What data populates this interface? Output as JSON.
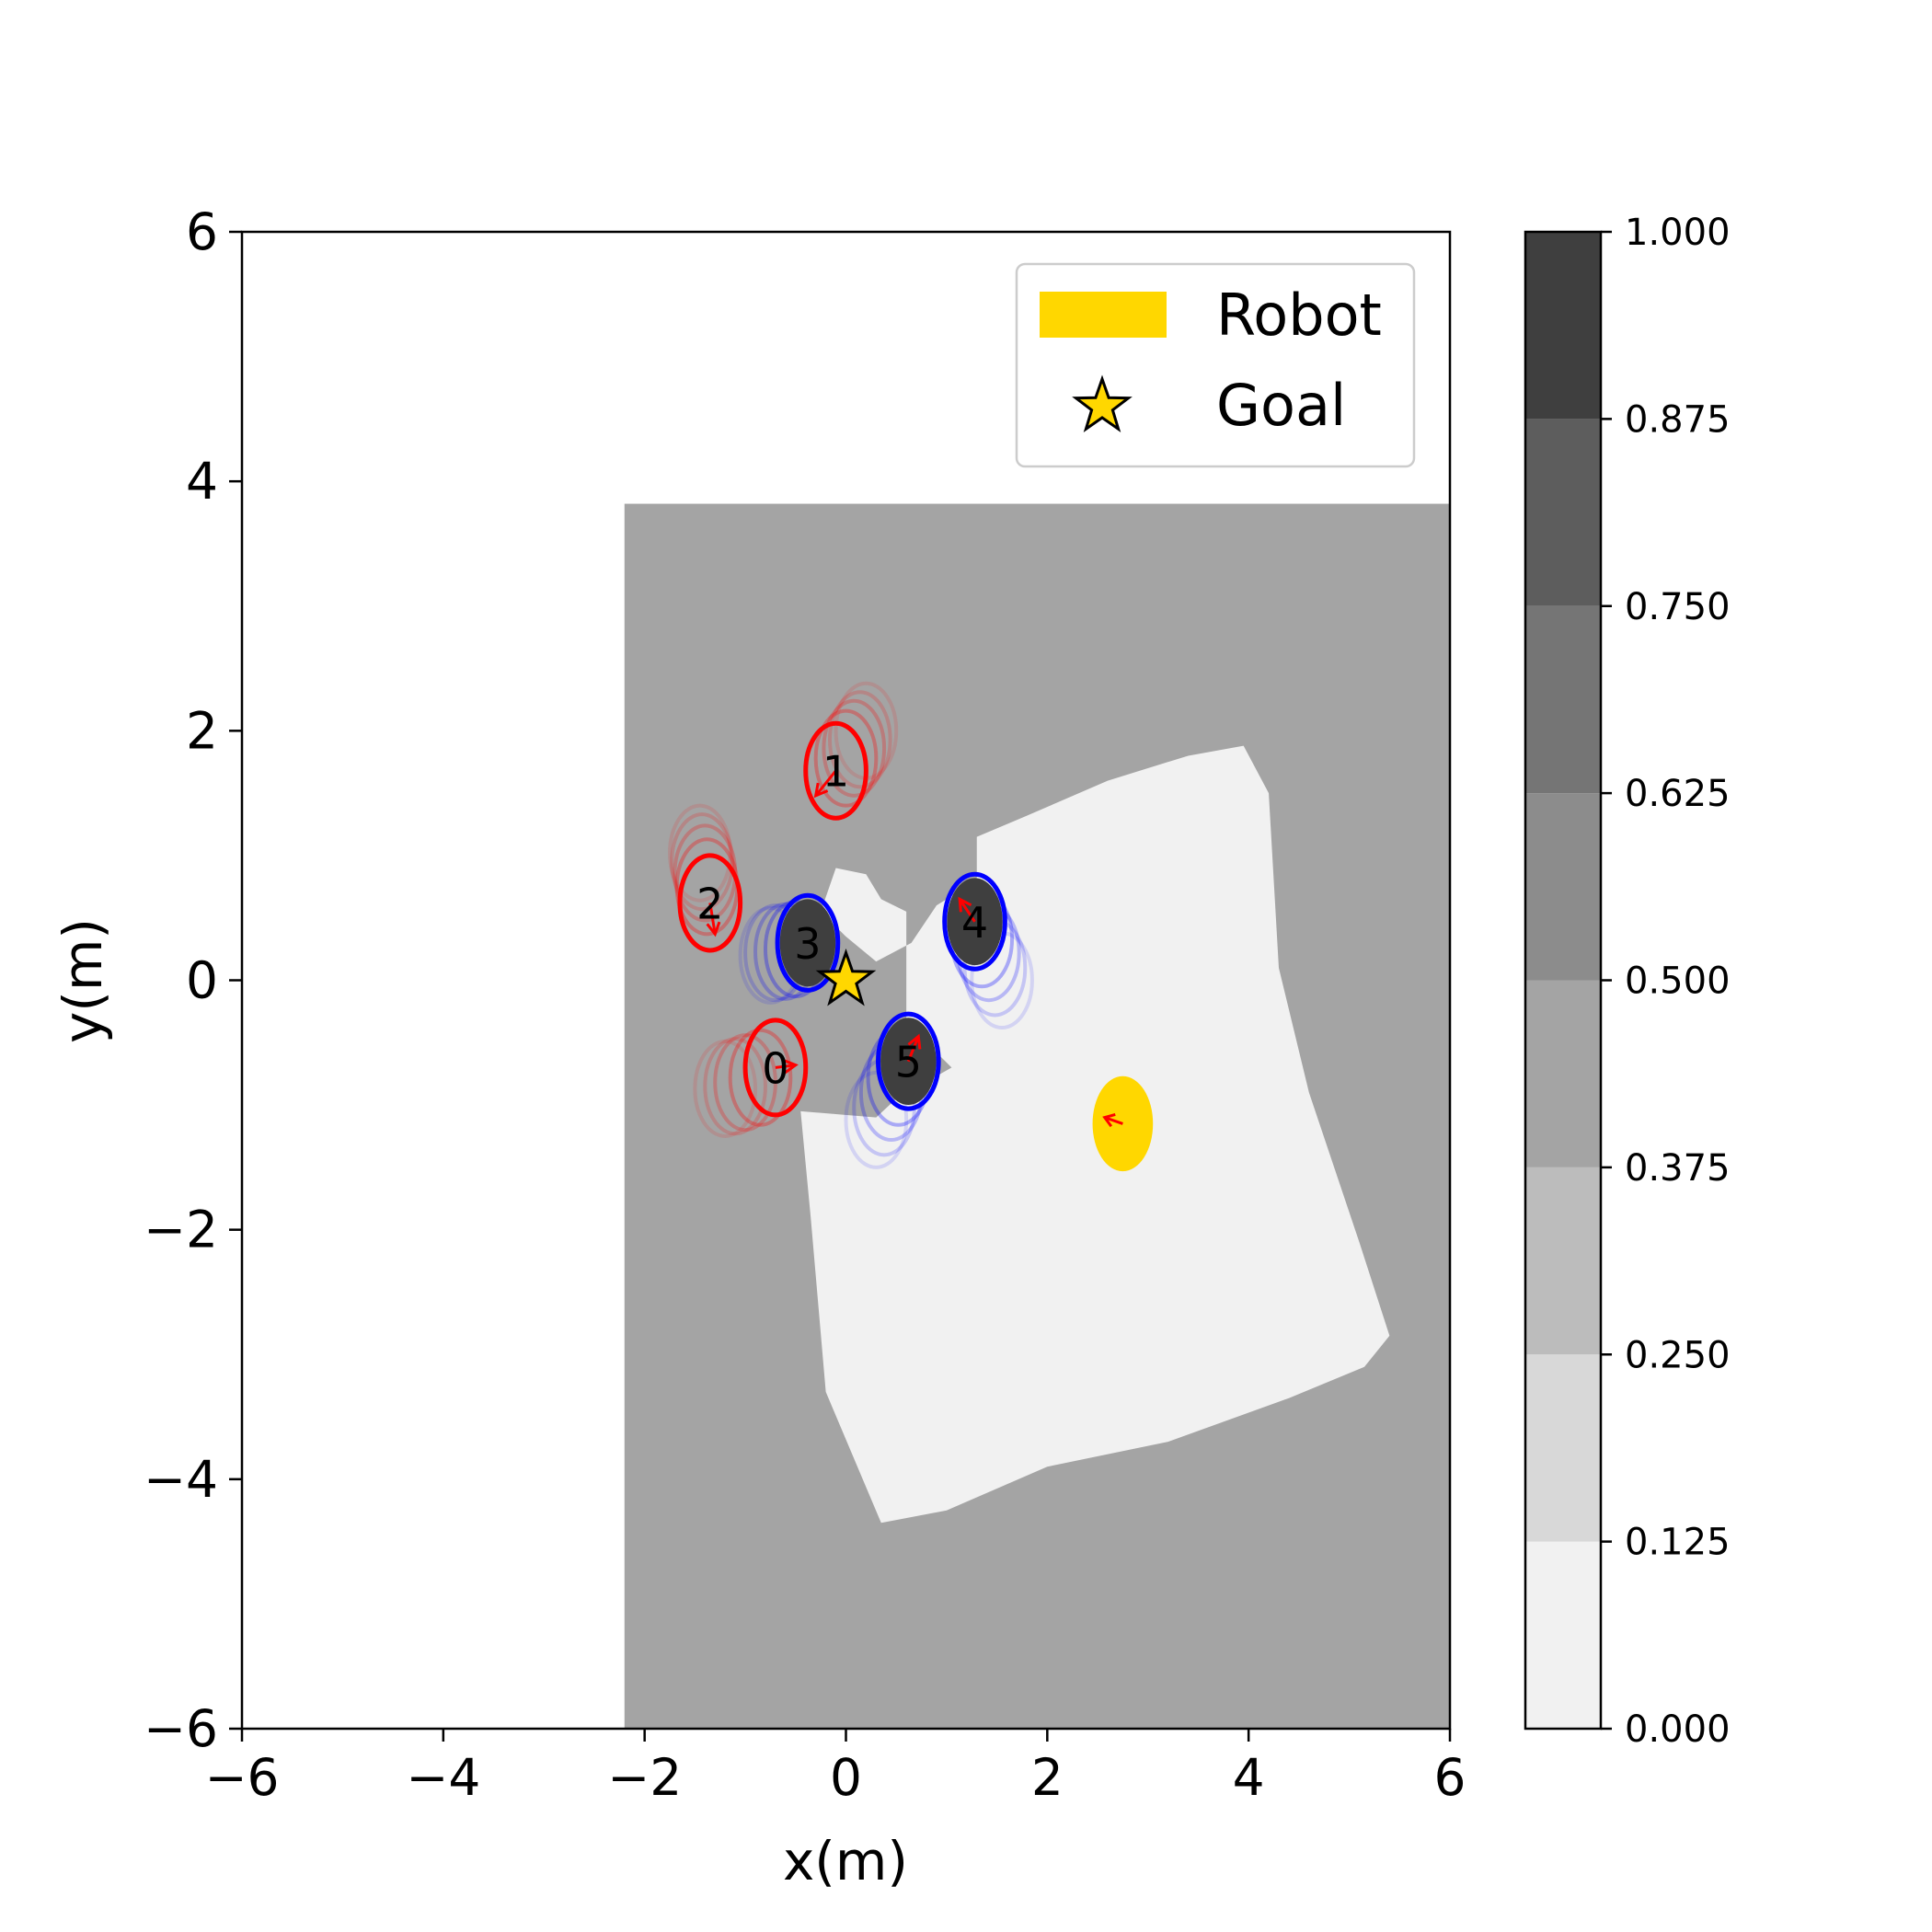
{
  "chart_data": {
    "type": "scatter",
    "xlabel": "x(m)",
    "ylabel": "y(m)",
    "xlim": [
      -6,
      6
    ],
    "ylim": [
      -6,
      6
    ],
    "xticks": [
      -6,
      -4,
      -2,
      0,
      2,
      4,
      6
    ],
    "yticks": [
      -6,
      -4,
      -2,
      0,
      2,
      4,
      6
    ],
    "xtick_labels": [
      "−6",
      "−4",
      "−2",
      "0",
      "2",
      "4",
      "6"
    ],
    "ytick_labels": [
      "−6",
      "−4",
      "−2",
      "0",
      "2",
      "4",
      "6"
    ],
    "grid": false,
    "legend": {
      "placement": "top-right",
      "entries": [
        {
          "label": "Robot",
          "marker": "patch",
          "color": "#ffd700"
        },
        {
          "label": "Goal",
          "marker": "star",
          "color": "#ffd700"
        }
      ]
    },
    "colorbar": {
      "min": 0.0,
      "max": 1.0,
      "levels": [
        0.0,
        0.125,
        0.25,
        0.375,
        0.5,
        0.625,
        0.75,
        0.875,
        1.0
      ],
      "tick_labels": [
        "0.000",
        "0.125",
        "0.250",
        "0.375",
        "0.500",
        "0.625",
        "0.750",
        "0.875",
        "1.000"
      ],
      "colors": [
        "#f1f1f1",
        "#d8d8d8",
        "#bcbcbc",
        "#a4a4a4",
        "#8c8c8c",
        "#757575",
        "#5d5d5d",
        "#3f3f3f"
      ]
    },
    "occupancy_map": {
      "observed_region": {
        "x_range": [
          -2.2,
          6
        ],
        "y_range": [
          -6,
          3.82
        ],
        "value": 0.4375
      },
      "free_region": {
        "value": 0.05,
        "outline": [
          [
            -0.1,
            0.9
          ],
          [
            0.2,
            0.85
          ],
          [
            0.35,
            0.65
          ],
          [
            0.6,
            0.55
          ],
          [
            0.6,
            -0.4
          ],
          [
            0.8,
            -0.5
          ],
          [
            1.05,
            -0.7
          ],
          [
            0.5,
            -0.95
          ],
          [
            0.3,
            -1.1
          ],
          [
            -0.45,
            -1.05
          ],
          [
            -0.35,
            -1.9
          ],
          [
            -0.2,
            -3.3
          ],
          [
            0.35,
            -4.35
          ],
          [
            1.0,
            -4.25
          ],
          [
            2.0,
            -3.9
          ],
          [
            3.2,
            -3.7
          ],
          [
            4.4,
            -3.35
          ],
          [
            5.15,
            -3.1
          ],
          [
            5.4,
            -2.85
          ],
          [
            5.1,
            -2.1
          ],
          [
            4.6,
            -0.9
          ],
          [
            4.3,
            0.1
          ],
          [
            4.2,
            1.5
          ],
          [
            4.2,
            1.5
          ],
          [
            3.95,
            1.88
          ],
          [
            3.4,
            1.8
          ],
          [
            2.6,
            1.6
          ],
          [
            1.8,
            1.32
          ],
          [
            1.3,
            1.15
          ],
          [
            1.3,
            0.8
          ],
          [
            0.9,
            0.6
          ],
          [
            0.65,
            0.3
          ],
          [
            0.3,
            0.15
          ],
          [
            0.0,
            0.35
          ],
          [
            -0.25,
            0.55
          ]
        ]
      }
    },
    "robot": {
      "x": 2.75,
      "y": -1.15,
      "radius": 0.3,
      "heading_dx": -0.18,
      "heading_dy": 0.05,
      "color": "#ffd700"
    },
    "goal": {
      "x": 0.0,
      "y": 0.0,
      "color": "#ffd700"
    },
    "agents": [
      {
        "id": "0",
        "x": -0.7,
        "y": -0.7,
        "color": "red",
        "occupancy": 0.0,
        "trail": [
          [
            -0.85,
            -0.78
          ],
          [
            -1.0,
            -0.82
          ],
          [
            -1.1,
            -0.85
          ],
          [
            -1.2,
            -0.87
          ]
        ],
        "vx": 0.2,
        "vy": 0.02
      },
      {
        "id": "1",
        "x": -0.1,
        "y": 1.68,
        "color": "red",
        "occupancy": 0.0,
        "trail": [
          [
            0.0,
            1.78
          ],
          [
            0.08,
            1.86
          ],
          [
            0.14,
            1.93
          ],
          [
            0.2,
            2.0
          ]
        ],
        "vx": -0.2,
        "vy": -0.2
      },
      {
        "id": "2",
        "x": -1.35,
        "y": 0.62,
        "color": "red",
        "occupancy": 0.0,
        "trail": [
          [
            -1.38,
            0.75
          ],
          [
            -1.4,
            0.86
          ],
          [
            -1.43,
            0.95
          ],
          [
            -1.45,
            1.02
          ]
        ],
        "vx": 0.05,
        "vy": -0.25
      },
      {
        "id": "3",
        "x": -0.38,
        "y": 0.3,
        "color": "blue",
        "occupancy": 0.9375,
        "trail": [
          [
            -0.5,
            0.25
          ],
          [
            -0.6,
            0.23
          ],
          [
            -0.7,
            0.22
          ],
          [
            -0.75,
            0.2
          ]
        ],
        "vx": 0.0,
        "vy": 0.0
      },
      {
        "id": "4",
        "x": 1.28,
        "y": 0.47,
        "color": "blue",
        "occupancy": 0.9375,
        "trail": [
          [
            1.35,
            0.33
          ],
          [
            1.42,
            0.22
          ],
          [
            1.48,
            0.1
          ],
          [
            1.55,
            0.0
          ]
        ],
        "vx": -0.15,
        "vy": 0.18
      },
      {
        "id": "5",
        "x": 0.62,
        "y": -0.65,
        "color": "blue",
        "occupancy": 0.9375,
        "trail": [
          [
            0.52,
            -0.78
          ],
          [
            0.45,
            -0.9
          ],
          [
            0.38,
            -1.02
          ],
          [
            0.3,
            -1.12
          ]
        ],
        "vx": 0.1,
        "vy": 0.2
      }
    ]
  }
}
